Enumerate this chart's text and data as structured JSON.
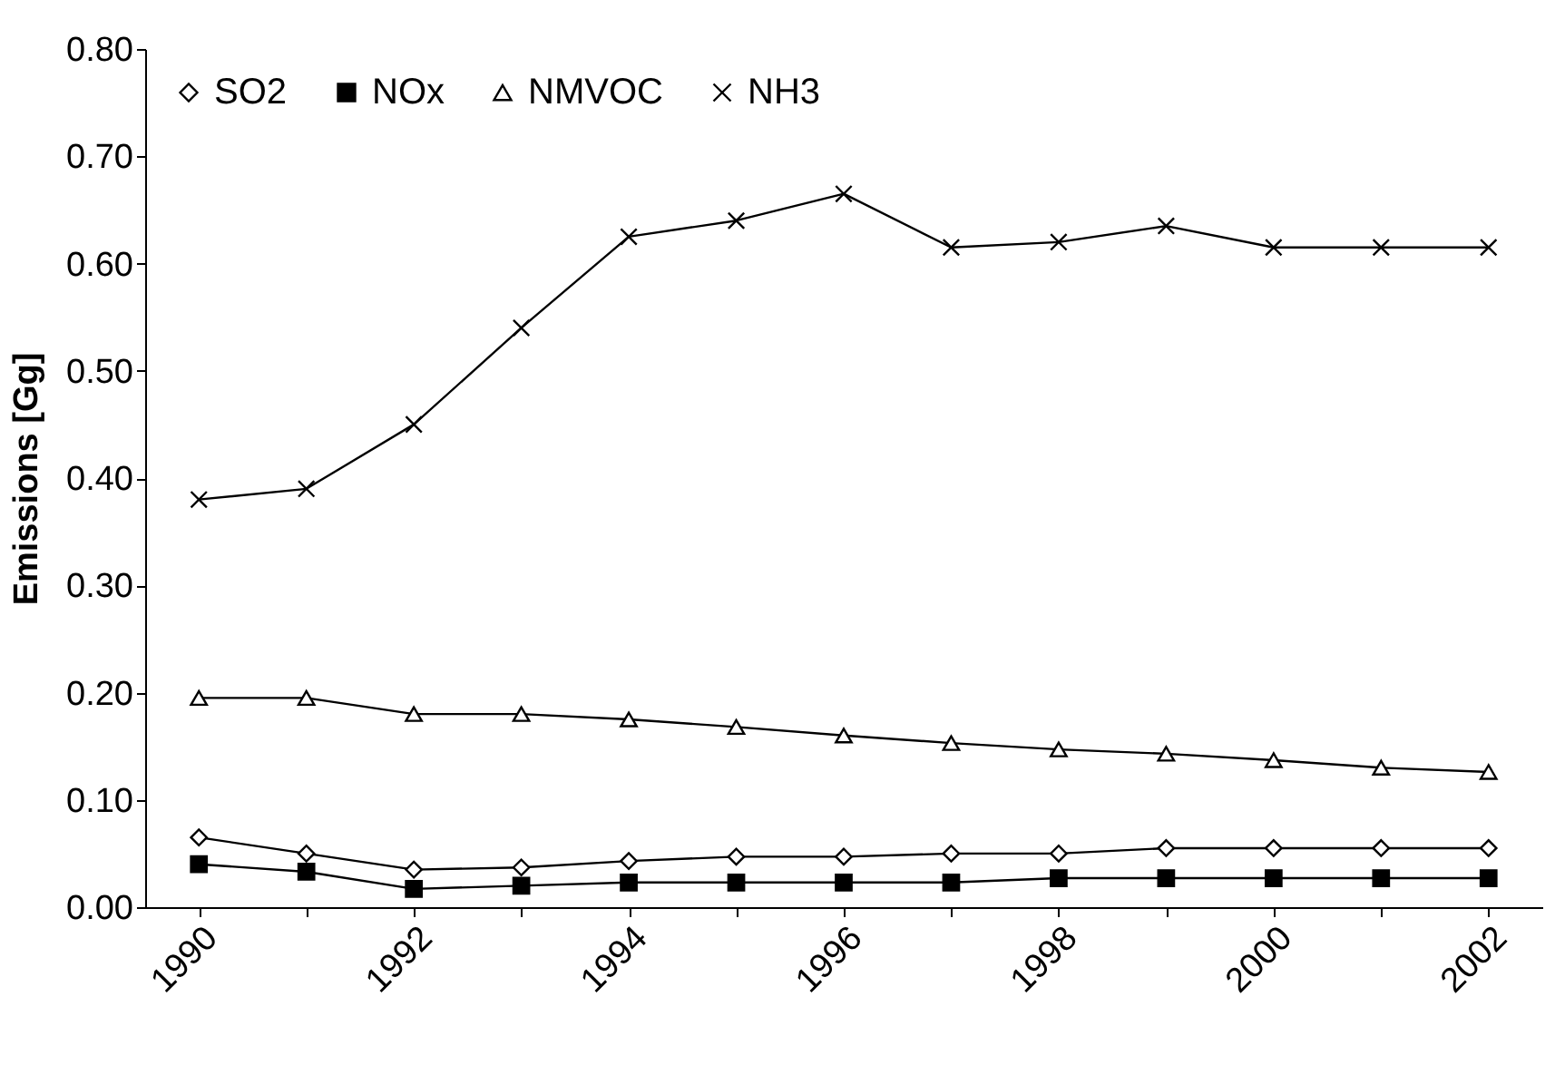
{
  "chart_data": {
    "type": "line",
    "ylabel": "Emissions [Gg]",
    "categories": [
      "1990",
      null,
      "1992",
      null,
      "1994",
      null,
      "1996",
      null,
      "1998",
      null,
      "2000",
      null,
      "2002"
    ],
    "series": [
      {
        "name": "SO2",
        "color": "#000000",
        "marker": "diamond",
        "values": [
          0.065,
          0.05,
          0.035,
          0.037,
          0.043,
          0.047,
          0.047,
          0.05,
          0.05,
          0.055,
          0.055,
          0.055,
          0.055
        ]
      },
      {
        "name": "NOx",
        "color": "#000000",
        "marker": "square",
        "values": [
          0.04,
          0.033,
          0.017,
          0.02,
          0.023,
          0.023,
          0.023,
          0.023,
          0.027,
          0.027,
          0.027,
          0.027,
          0.027
        ]
      },
      {
        "name": "NMVOC",
        "color": "#000000",
        "marker": "triangle",
        "values": [
          0.195,
          0.195,
          0.18,
          0.18,
          0.175,
          0.168,
          0.16,
          0.153,
          0.147,
          0.143,
          0.137,
          0.13,
          0.126
        ]
      },
      {
        "name": "NH3",
        "color": "#000000",
        "marker": "cross",
        "values": [
          0.38,
          0.39,
          0.45,
          0.54,
          0.625,
          0.64,
          0.665,
          0.615,
          0.62,
          0.635,
          0.615,
          0.615,
          0.615
        ]
      }
    ],
    "ylim": [
      0,
      0.8
    ],
    "yticks": [
      {
        "value": 0,
        "label": "0.00"
      },
      {
        "value": 0.1,
        "label": "0.10"
      },
      {
        "value": 0.2,
        "label": "0.20"
      },
      {
        "value": 0.3,
        "label": "0.30"
      },
      {
        "value": 0.4,
        "label": "0.40"
      },
      {
        "value": 0.5,
        "label": "0.50"
      },
      {
        "value": 0.6,
        "label": "0.60"
      },
      {
        "value": 0.7,
        "label": "0.70"
      },
      {
        "value": 0.8,
        "label": "0.80"
      }
    ],
    "legend": "top",
    "grid": false
  }
}
